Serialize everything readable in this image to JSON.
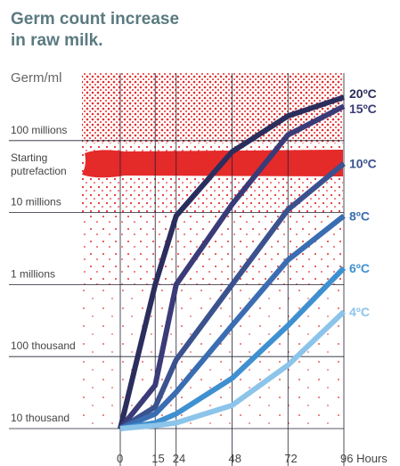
{
  "chart_data": {
    "type": "line",
    "title": "Germ count increase in raw milk.",
    "y_label": "Germ/ml",
    "annotation": "Starting putrefaction",
    "log_scale": true,
    "grid": true,
    "x": [
      0,
      15,
      24,
      48,
      72,
      96
    ],
    "xlim": [
      0,
      96
    ],
    "xticks": [
      0,
      15,
      24,
      48,
      72,
      {
        "value": 96,
        "label": "96 Hours"
      }
    ],
    "ylim": [
      10000,
      1000000000
    ],
    "yticks": [
      {
        "value": 10000,
        "label": "10 thousand"
      },
      {
        "value": 100000,
        "label": "100 thousand"
      },
      {
        "value": 1000000,
        "label": "1 millions"
      },
      {
        "value": 10000000,
        "label": "10 millions"
      },
      {
        "value": 100000000,
        "label": "100 millions"
      }
    ],
    "series": [
      {
        "name": "20ºC",
        "color": "#2b2e5c",
        "values": [
          10000,
          1000000,
          9000000,
          70000000,
          220000000,
          400000000
        ]
      },
      {
        "name": "15ºC",
        "color": "#3a3b78",
        "values": [
          10000,
          40000,
          1000000,
          13000000,
          120000000,
          300000000
        ]
      },
      {
        "name": "10ºC",
        "color": "#3b528e",
        "values": [
          10000,
          20000,
          90000,
          1000000,
          11000000,
          48000000
        ]
      },
      {
        "name": "8ºC",
        "color": "#3a6db2",
        "values": [
          10000,
          16000,
          32000,
          270000,
          2200000,
          9000000
        ]
      },
      {
        "name": "6ºC",
        "color": "#3f90d0",
        "values": [
          10000,
          12000,
          16000,
          50000,
          270000,
          1700000
        ]
      },
      {
        "name": "4ºC",
        "color": "#8cc4ea",
        "values": [
          10000,
          11000,
          12000,
          21000,
          76000,
          420000
        ]
      }
    ]
  }
}
